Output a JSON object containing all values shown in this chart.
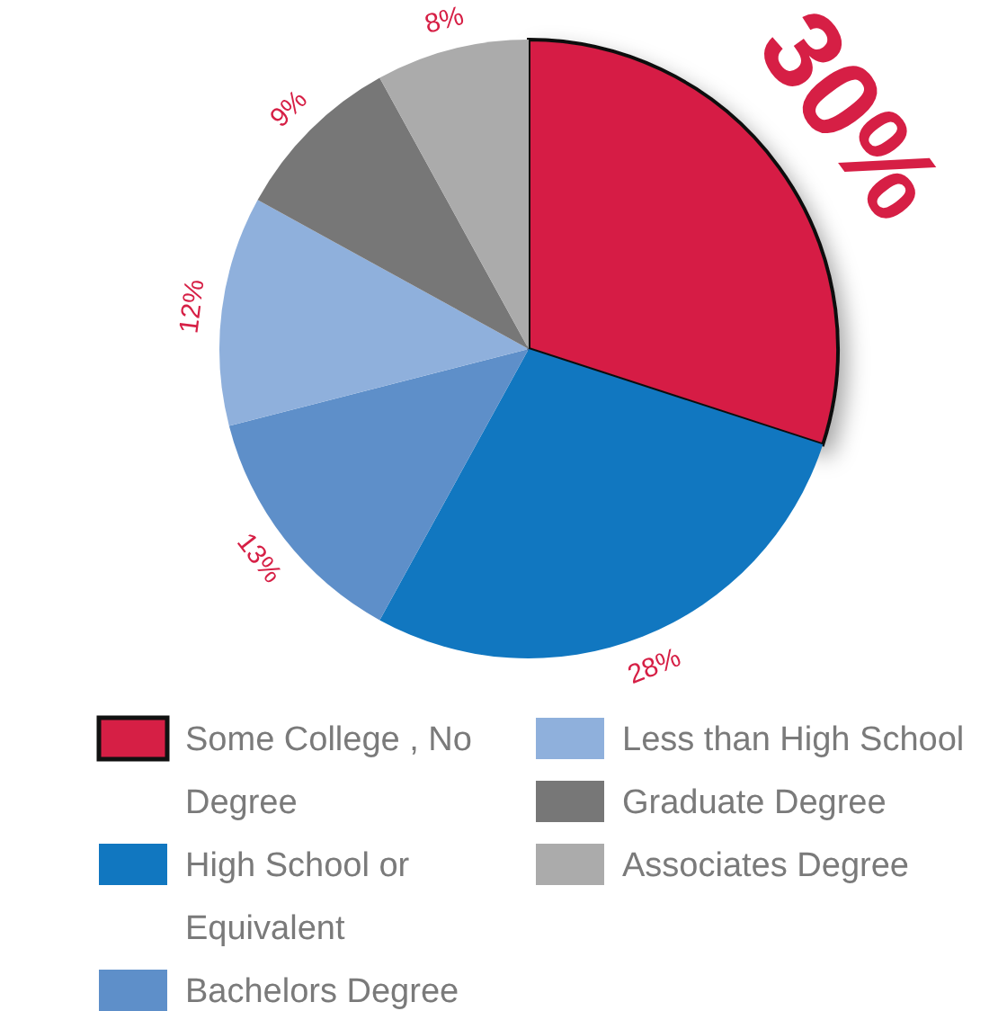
{
  "chart_data": {
    "type": "pie",
    "categories": [
      "Some College , No Degree",
      "High School or Equivalent",
      "Bachelors Degree",
      "Less than High School",
      "Graduate Degree",
      "Associates Degree"
    ],
    "values": [
      30,
      28,
      13,
      12,
      9,
      8
    ],
    "colors": [
      "#d61f45",
      "#1177c0",
      "#5e8fc9",
      "#8fb0dc",
      "#777777",
      "#ababab"
    ],
    "value_labels": [
      "30%",
      "28%",
      "13%",
      "12%",
      "9%",
      "8%"
    ],
    "legend": "bottom"
  }
}
